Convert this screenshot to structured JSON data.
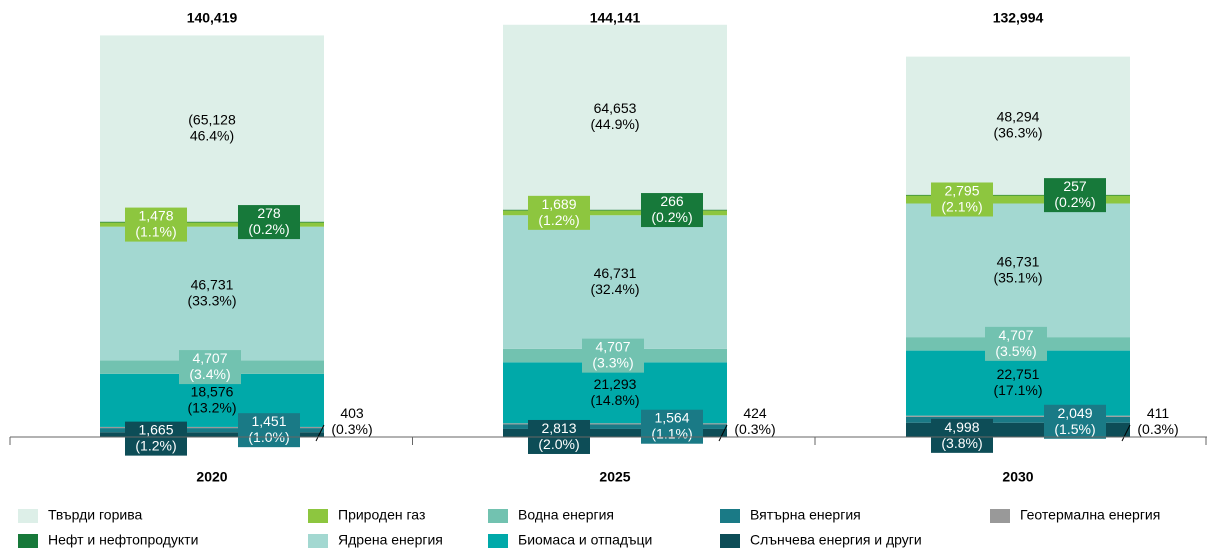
{
  "chart_data": {
    "type": "stacked_bar",
    "categories": [
      "2020",
      "2025",
      "2030"
    ],
    "totals": [
      140419,
      144141,
      132994
    ],
    "total_labels": [
      "140,419",
      "144,141",
      "132,994"
    ],
    "ylim": [
      0,
      150000
    ],
    "series": [
      {
        "name": "Слънчева енергия и други",
        "color": "#0d4d57",
        "values": [
          1665,
          2813,
          4998
        ],
        "value_labels": [
          "1,665\n(1.2%)",
          "2,813\n(2.0%)",
          "4,998\n(3.8%)"
        ]
      },
      {
        "name": "Вятърна енергия",
        "color": "#1a7a86",
        "values": [
          1451,
          1564,
          2049
        ],
        "value_labels": [
          "1,451\n(1.0%)",
          "1,564\n(1.1%)",
          "2,049\n(1.5%)"
        ]
      },
      {
        "name": "Геотермална енергия",
        "color": "#999999",
        "values": [
          403,
          424,
          411
        ],
        "value_labels": [
          "403\n(0.3%)",
          "424\n(0.3%)",
          "411\n(0.3%)"
        ]
      },
      {
        "name": "Биомаса и отпадъци",
        "color": "#00a9a9",
        "values": [
          18576,
          21293,
          22751
        ],
        "value_labels": [
          "18,576\n(13.2%)",
          "21,293\n(14.8%)",
          "22,751\n(17.1%)"
        ]
      },
      {
        "name": "Водна енергия",
        "color": "#72c2b0",
        "values": [
          4707,
          4707,
          4707
        ],
        "value_labels": [
          "4,707\n(3.4%)",
          "4,707\n(3.3%)",
          "4,707\n(3.5%)"
        ]
      },
      {
        "name": "Ядрена енергия",
        "color": "#a3d8d1",
        "values": [
          46731,
          46731,
          46731
        ],
        "value_labels": [
          "46,731\n(33.3%)",
          "46,731\n(32.4%)",
          "46,731\n(35.1%)"
        ]
      },
      {
        "name": "Природен газ",
        "color": "#8dc63f",
        "values": [
          1478,
          1689,
          2795
        ],
        "value_labels": [
          "1,478\n(1.1%)",
          "1,689\n(1.2%)",
          "2,795\n(2.1%)"
        ]
      },
      {
        "name": "Нефт и нефтопродукти",
        "color": "#17793a",
        "values": [
          278,
          266,
          257
        ],
        "value_labels": [
          "278\n(0.2%)",
          "266\n(0.2%)",
          "257\n(0.2%)"
        ]
      },
      {
        "name": "Твърди горива",
        "color": "#ddefe8",
        "values": [
          65128,
          64653,
          48294
        ],
        "value_labels": [
          "(65,128\n46.4%)",
          "64,653\n(44.9%)",
          "48,294\n(36.3%)"
        ]
      }
    ]
  }
}
